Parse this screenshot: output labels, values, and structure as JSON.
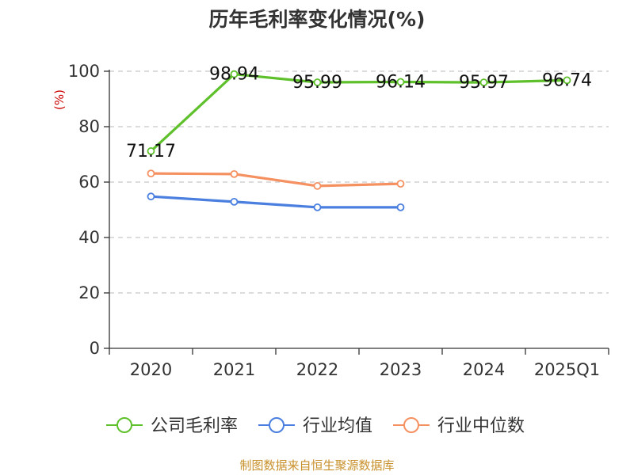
{
  "chart_data": {
    "type": "line",
    "title": "历年毛利率变化情况(%)",
    "ylabel": "(%)",
    "xlabel": "",
    "ylim": [
      0,
      100
    ],
    "yticks": [
      0,
      20,
      40,
      60,
      80,
      100
    ],
    "categories": [
      "2020",
      "2021",
      "2022",
      "2023",
      "2024",
      "2025Q1"
    ],
    "grid": true,
    "legend_position": "bottom",
    "series": [
      {
        "name": "公司毛利率",
        "color": "#5ec02a",
        "values": [
          71.17,
          98.94,
          95.99,
          96.14,
          95.97,
          96.74
        ],
        "labels": [
          "71.17",
          "98.94",
          "95.99",
          "96.14",
          "95.97",
          "96.74"
        ]
      },
      {
        "name": "行业均值",
        "color": "#4a7fe0",
        "values": [
          54.8,
          52.9,
          50.9,
          50.9,
          null,
          null
        ]
      },
      {
        "name": "行业中位数",
        "color": "#f59160",
        "values": [
          63.1,
          62.9,
          58.6,
          59.4,
          null,
          null
        ]
      }
    ],
    "source": "制图数据来自恒生聚源数据库"
  }
}
